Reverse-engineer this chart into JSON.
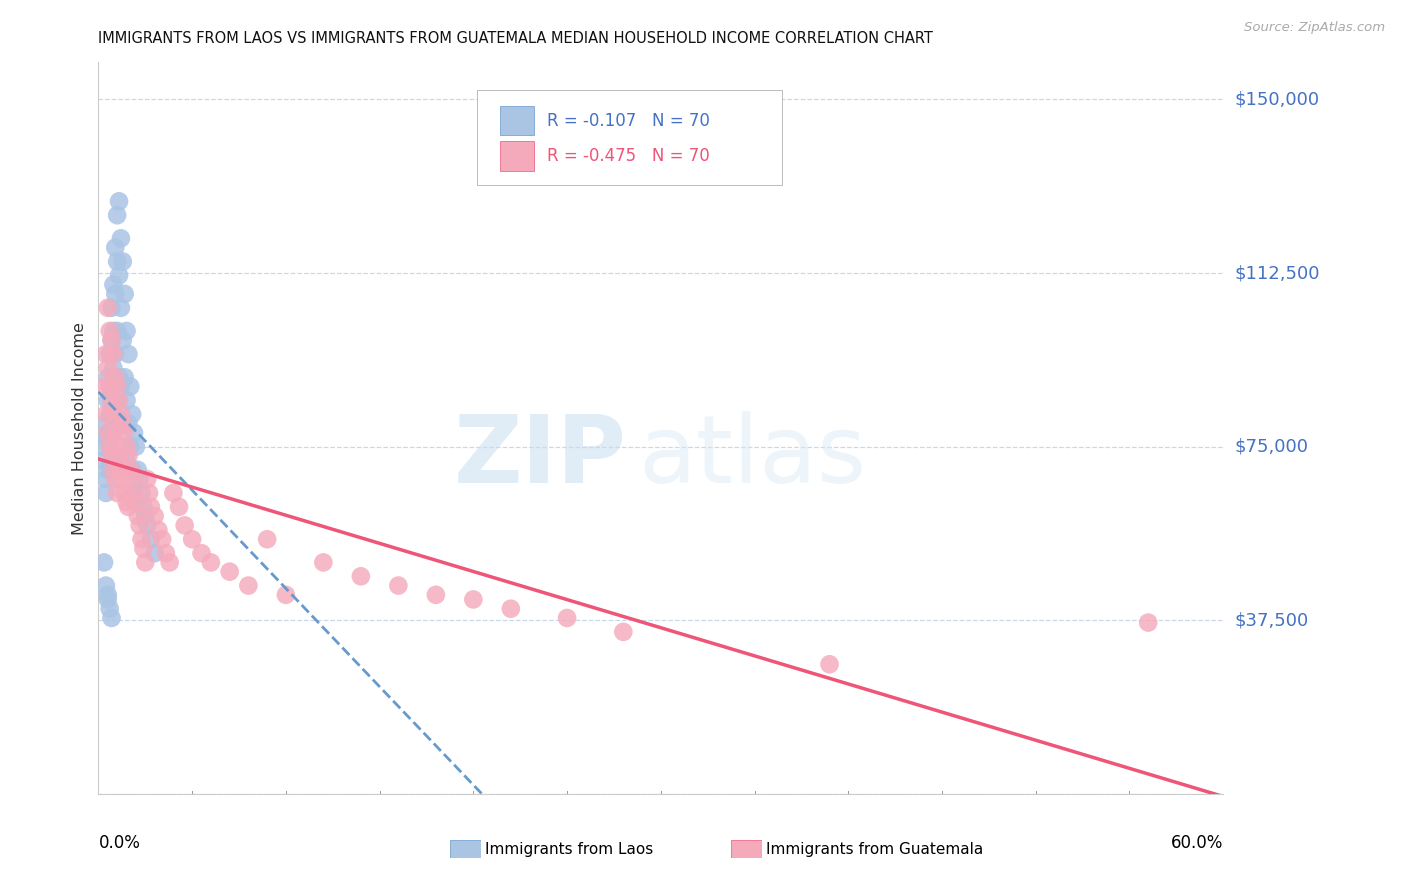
{
  "title": "IMMIGRANTS FROM LAOS VS IMMIGRANTS FROM GUATEMALA MEDIAN HOUSEHOLD INCOME CORRELATION CHART",
  "source": "Source: ZipAtlas.com",
  "ylabel": "Median Household Income",
  "ytick_vals": [
    0,
    37500,
    75000,
    112500,
    150000
  ],
  "ytick_labels": [
    "",
    "$37,500",
    "$75,000",
    "$112,500",
    "$150,000"
  ],
  "xmin": 0.0,
  "xmax": 0.6,
  "ymin": 0,
  "ymax": 158000,
  "watermark_zip": "ZIP",
  "watermark_atlas": "atlas",
  "r_laos": "-0.107",
  "n_laos": "70",
  "r_guat": "-0.475",
  "n_guat": "70",
  "color_laos": "#aac4e4",
  "color_guatemala": "#f5aabb",
  "color_laos_line": "#6699cc",
  "color_guatemala_line": "#ee5577",
  "color_yaxis": "#4472c4",
  "color_title": "#111111",
  "color_source": "#aaaaaa",
  "color_grid": "#c8d8ec",
  "laos_x": [
    0.003,
    0.003,
    0.004,
    0.004,
    0.004,
    0.004,
    0.005,
    0.005,
    0.005,
    0.005,
    0.006,
    0.006,
    0.006,
    0.006,
    0.007,
    0.007,
    0.007,
    0.007,
    0.007,
    0.008,
    0.008,
    0.008,
    0.008,
    0.008,
    0.009,
    0.009,
    0.009,
    0.009,
    0.01,
    0.01,
    0.01,
    0.01,
    0.011,
    0.011,
    0.011,
    0.012,
    0.012,
    0.012,
    0.013,
    0.013,
    0.013,
    0.014,
    0.014,
    0.015,
    0.015,
    0.015,
    0.016,
    0.016,
    0.017,
    0.017,
    0.018,
    0.018,
    0.019,
    0.019,
    0.02,
    0.02,
    0.021,
    0.022,
    0.023,
    0.024,
    0.025,
    0.026,
    0.028,
    0.03,
    0.005,
    0.006,
    0.007,
    0.004,
    0.005,
    0.003
  ],
  "laos_y": [
    75000,
    72000,
    80000,
    77000,
    68000,
    65000,
    90000,
    85000,
    78000,
    70000,
    95000,
    88000,
    82000,
    75000,
    105000,
    98000,
    88000,
    78000,
    70000,
    110000,
    100000,
    92000,
    83000,
    73000,
    118000,
    108000,
    95000,
    82000,
    125000,
    115000,
    100000,
    85000,
    128000,
    112000,
    90000,
    120000,
    105000,
    88000,
    115000,
    98000,
    80000,
    108000,
    90000,
    100000,
    85000,
    72000,
    95000,
    80000,
    88000,
    75000,
    82000,
    70000,
    78000,
    65000,
    75000,
    63000,
    70000,
    68000,
    65000,
    62000,
    60000,
    58000,
    55000,
    52000,
    42000,
    40000,
    38000,
    45000,
    43000,
    50000
  ],
  "guat_x": [
    0.003,
    0.004,
    0.004,
    0.005,
    0.005,
    0.005,
    0.006,
    0.006,
    0.006,
    0.007,
    0.007,
    0.007,
    0.008,
    0.008,
    0.008,
    0.009,
    0.009,
    0.009,
    0.01,
    0.01,
    0.01,
    0.011,
    0.011,
    0.012,
    0.012,
    0.013,
    0.013,
    0.014,
    0.014,
    0.015,
    0.015,
    0.016,
    0.016,
    0.017,
    0.018,
    0.019,
    0.02,
    0.021,
    0.022,
    0.023,
    0.024,
    0.025,
    0.026,
    0.027,
    0.028,
    0.03,
    0.032,
    0.034,
    0.036,
    0.038,
    0.04,
    0.043,
    0.046,
    0.05,
    0.055,
    0.06,
    0.07,
    0.08,
    0.09,
    0.1,
    0.12,
    0.14,
    0.16,
    0.18,
    0.2,
    0.22,
    0.25,
    0.28,
    0.39,
    0.56
  ],
  "guat_y": [
    88000,
    95000,
    82000,
    105000,
    92000,
    78000,
    100000,
    88000,
    75000,
    98000,
    85000,
    73000,
    95000,
    82000,
    70000,
    90000,
    78000,
    68000,
    88000,
    75000,
    65000,
    85000,
    72000,
    82000,
    70000,
    80000,
    68000,
    78000,
    65000,
    75000,
    63000,
    73000,
    62000,
    70000,
    68000,
    65000,
    63000,
    60000,
    58000,
    55000,
    53000,
    50000,
    68000,
    65000,
    62000,
    60000,
    57000,
    55000,
    52000,
    50000,
    65000,
    62000,
    58000,
    55000,
    52000,
    50000,
    48000,
    45000,
    55000,
    43000,
    50000,
    47000,
    45000,
    43000,
    42000,
    40000,
    38000,
    35000,
    28000,
    37000
  ]
}
